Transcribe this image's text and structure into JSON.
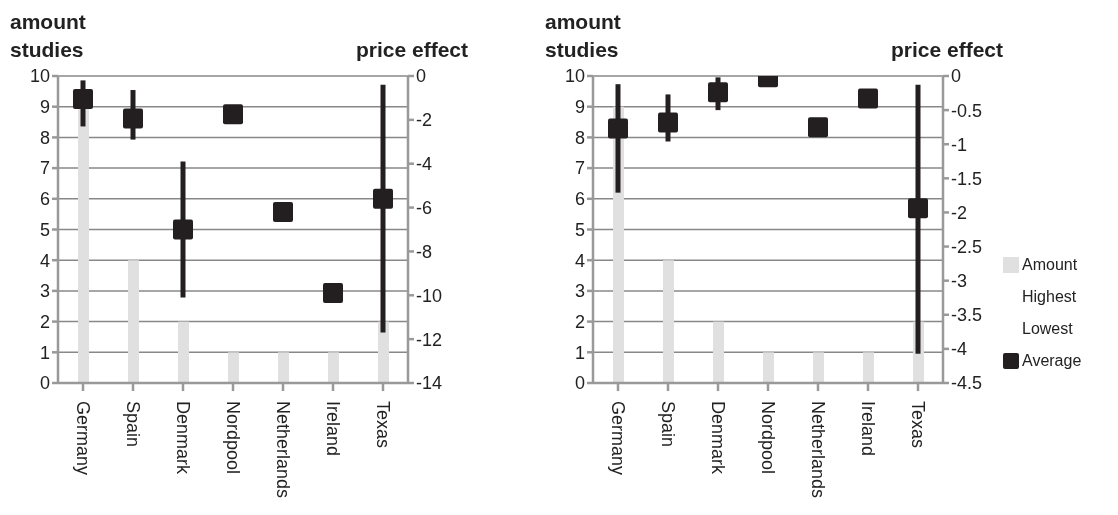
{
  "chart_data": [
    {
      "type": "bar",
      "ylabel": "amount studies",
      "y2label": "price effect",
      "categories": [
        "Germany",
        "Spain",
        "Denmark",
        "Nordpool",
        "Netherlands",
        "Ireland",
        "Texas"
      ],
      "ylim": [
        0,
        10
      ],
      "yticks": [
        0,
        1,
        2,
        3,
        4,
        5,
        6,
        7,
        8,
        9,
        10
      ],
      "y2lim": [
        -14,
        0
      ],
      "y2ticks": [
        -14,
        -12,
        -10,
        -8,
        -6,
        -4,
        -2,
        0
      ],
      "grid": "y",
      "series": [
        {
          "color": "#e0e0e0",
          "values": [
            9,
            4,
            2,
            1,
            1,
            1,
            2
          ]
        },
        {
          "type": "scatter",
          "axis": "y2",
          "marker": "square",
          "color": "#231f20",
          "values": [
            -1.05,
            -1.94,
            -7.0,
            -1.74,
            -6.2,
            -9.9,
            -5.6
          ],
          "errors": [
            [
              -2.3,
              -0.2
            ],
            [
              -2.9,
              -0.64
            ],
            [
              -10.1,
              -3.9
            ],
            null,
            null,
            null,
            [
              -11.7,
              -0.4
            ]
          ]
        }
      ]
    },
    {
      "type": "bar",
      "ylabel": "amount studies",
      "y2label": "price effect",
      "categories": [
        "Germany",
        "Spain",
        "Denmark",
        "Nordpool",
        "Netherlands",
        "Ireland",
        "Texas"
      ],
      "ylim": [
        0,
        10
      ],
      "yticks": [
        0,
        1,
        2,
        3,
        4,
        5,
        6,
        7,
        8,
        9,
        10
      ],
      "y2lim": [
        -4.5,
        0
      ],
      "y2ticks": [
        -4.5,
        -4,
        -3.5,
        -3,
        -2.5,
        -2,
        -1.5,
        -1,
        -0.5,
        0
      ],
      "grid": "y",
      "legend": "right",
      "annotations": [
        "Highest",
        "Lowest"
      ],
      "series": [
        {
          "name": "Amount",
          "color": "#e0e0e0",
          "values": [
            9,
            4,
            2,
            1,
            1,
            1,
            2
          ]
        },
        {
          "name": "Average",
          "type": "scatter",
          "axis": "y2",
          "marker": "square",
          "color": "#231f20",
          "values": [
            -0.77,
            -0.68,
            -0.24,
            -0.02,
            -0.75,
            -0.33,
            -1.94
          ],
          "errors": [
            [
              -1.71,
              -0.12
            ],
            [
              -0.96,
              -0.27
            ],
            [
              -0.5,
              -0.02
            ],
            null,
            null,
            null,
            [
              -4.07,
              -0.13
            ]
          ]
        }
      ]
    }
  ]
}
